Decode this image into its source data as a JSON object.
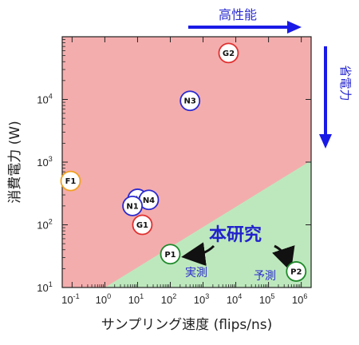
{
  "chart_data": {
    "type": "scatter",
    "xlabel": "サンプリング速度 (flips/ns)",
    "ylabel": "消費電力 (W)",
    "x_scale": "log",
    "y_scale": "log",
    "xlim": [
      0.05,
      2000000
    ],
    "ylim": [
      10,
      100000
    ],
    "x_ticks": [
      {
        "base": "10",
        "exp": "-1"
      },
      {
        "base": "10",
        "exp": "0"
      },
      {
        "base": "10",
        "exp": "1"
      },
      {
        "base": "10",
        "exp": "2"
      },
      {
        "base": "10",
        "exp": "3"
      },
      {
        "base": "10",
        "exp": "4"
      },
      {
        "base": "10",
        "exp": "5"
      },
      {
        "base": "10",
        "exp": "6"
      }
    ],
    "y_ticks": [
      {
        "base": "10",
        "exp": "1"
      },
      {
        "base": "10",
        "exp": "2"
      },
      {
        "base": "10",
        "exp": "3"
      },
      {
        "base": "10",
        "exp": "4"
      }
    ],
    "regions": {
      "upper_color": "#f4adad",
      "lower_color": "#bde8bd",
      "boundary": [
        [
          1,
          10
        ],
        [
          1000000,
          850
        ]
      ]
    },
    "points": [
      {
        "label": "G2",
        "x": 6000,
        "y": 55000,
        "color": "#e03030"
      },
      {
        "label": "N3",
        "x": 400,
        "y": 9500,
        "color": "#2a2ad0"
      },
      {
        "label": "F1",
        "x": 0.09,
        "y": 500,
        "color": "#f0a020"
      },
      {
        "label": "N2",
        "x": 10,
        "y": 260,
        "color": "#2a2ad0"
      },
      {
        "label": "N4",
        "x": 22,
        "y": 250,
        "color": "#2a2ad0"
      },
      {
        "label": "N1",
        "x": 7,
        "y": 200,
        "color": "#2a2ad0"
      },
      {
        "label": "G1",
        "x": 14,
        "y": 100,
        "color": "#e03030"
      },
      {
        "label": "P1",
        "x": 100,
        "y": 34,
        "color": "#1f8a2a"
      },
      {
        "label": "P2",
        "x": 700000,
        "y": 18,
        "color": "#1f8a2a"
      }
    ]
  },
  "annotations": {
    "high_performance": "高性能",
    "power_saving": "省電力",
    "this_work": "本研究",
    "measured": "実測",
    "predicted": "予測"
  },
  "colors": {
    "arrow_blue": "#1a1ae6",
    "text_blue": "#2b2bd0"
  }
}
